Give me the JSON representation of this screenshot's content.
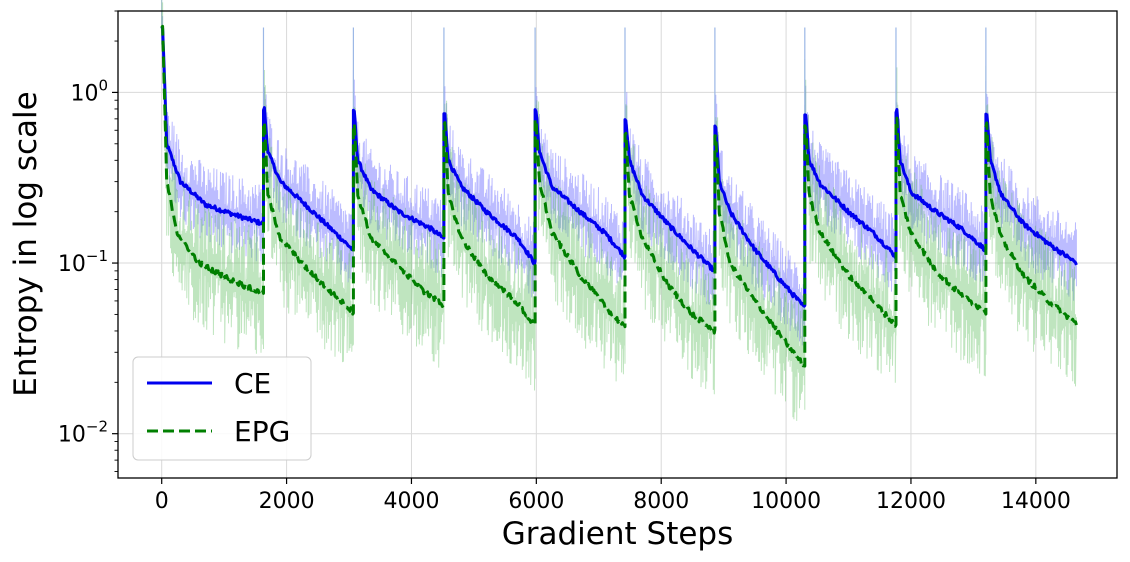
{
  "chart_data": {
    "type": "line",
    "xlabel": "Gradient Steps",
    "ylabel": "Entropy in log scale",
    "y_scale": "log",
    "xlim": [
      -700,
      15300
    ],
    "ylim": [
      0.0055,
      3.0
    ],
    "grid": true,
    "legend_position": "lower-left",
    "x_ticks": [
      0,
      2000,
      4000,
      6000,
      8000,
      10000,
      12000,
      14000
    ],
    "x_tick_labels": [
      "0",
      "2000",
      "4000",
      "6000",
      "8000",
      "10000",
      "12000",
      "14000"
    ],
    "y_ticks": [
      {
        "value": 1,
        "base": "10",
        "exp": "0"
      },
      {
        "value": 0.1,
        "base": "10",
        "exp": "−1"
      },
      {
        "value": 0.01,
        "base": "10",
        "exp": "−2"
      }
    ],
    "resets": [
      0,
      1630,
      3070,
      4520,
      5980,
      7420,
      8860,
      10300,
      11760,
      13200,
      14650
    ],
    "series": [
      {
        "name": "CE",
        "color": "#0000ee",
        "band_color": "#6b6bff",
        "line_style": "solid",
        "peaks": [
          2.4,
          0.8,
          0.78,
          0.74,
          0.78,
          0.7,
          0.63,
          0.76,
          0.78,
          0.75
        ],
        "anchors": [
          [
            [
              80,
              0.5
            ],
            [
              300,
              0.3
            ],
            [
              700,
              0.22
            ],
            [
              1200,
              0.19
            ],
            [
              1620,
              0.17
            ]
          ],
          [
            [
              1700,
              0.45
            ],
            [
              1900,
              0.3
            ],
            [
              2300,
              0.22
            ],
            [
              2700,
              0.16
            ],
            [
              3060,
              0.12
            ]
          ],
          [
            [
              3140,
              0.4
            ],
            [
              3350,
              0.27
            ],
            [
              3800,
              0.2
            ],
            [
              4300,
              0.16
            ],
            [
              4510,
              0.14
            ]
          ],
          [
            [
              4590,
              0.4
            ],
            [
              4800,
              0.28
            ],
            [
              5200,
              0.2
            ],
            [
              5700,
              0.14
            ],
            [
              5970,
              0.1
            ]
          ],
          [
            [
              6050,
              0.45
            ],
            [
              6250,
              0.28
            ],
            [
              6700,
              0.2
            ],
            [
              7100,
              0.15
            ],
            [
              7410,
              0.11
            ]
          ],
          [
            [
              7490,
              0.4
            ],
            [
              7700,
              0.25
            ],
            [
              8100,
              0.17
            ],
            [
              8500,
              0.12
            ],
            [
              8850,
              0.09
            ]
          ],
          [
            [
              8930,
              0.3
            ],
            [
              9100,
              0.2
            ],
            [
              9500,
              0.12
            ],
            [
              9900,
              0.08
            ],
            [
              10290,
              0.055
            ]
          ],
          [
            [
              10370,
              0.4
            ],
            [
              10550,
              0.29
            ],
            [
              11000,
              0.2
            ],
            [
              11400,
              0.15
            ],
            [
              11750,
              0.11
            ]
          ],
          [
            [
              11830,
              0.4
            ],
            [
              12000,
              0.26
            ],
            [
              12400,
              0.2
            ],
            [
              12800,
              0.16
            ],
            [
              13190,
              0.12
            ]
          ],
          [
            [
              13270,
              0.4
            ],
            [
              13450,
              0.25
            ],
            [
              13800,
              0.17
            ],
            [
              14200,
              0.13
            ],
            [
              14650,
              0.1
            ]
          ]
        ]
      },
      {
        "name": "EPG",
        "color": "#007f00",
        "band_color": "#5fbf5f",
        "line_style": "dashed",
        "peaks": [
          2.4,
          0.66,
          0.66,
          0.66,
          0.68,
          0.58,
          0.57,
          0.64,
          0.69,
          0.64
        ],
        "anchors": [
          [
            [
              80,
              0.3
            ],
            [
              250,
              0.15
            ],
            [
              600,
              0.1
            ],
            [
              1100,
              0.08
            ],
            [
              1620,
              0.066
            ]
          ],
          [
            [
              1700,
              0.25
            ],
            [
              1900,
              0.14
            ],
            [
              2300,
              0.095
            ],
            [
              2700,
              0.068
            ],
            [
              3060,
              0.052
            ]
          ],
          [
            [
              3140,
              0.25
            ],
            [
              3350,
              0.14
            ],
            [
              3800,
              0.095
            ],
            [
              4200,
              0.068
            ],
            [
              4510,
              0.057
            ]
          ],
          [
            [
              4590,
              0.25
            ],
            [
              4800,
              0.14
            ],
            [
              5200,
              0.085
            ],
            [
              5700,
              0.058
            ],
            [
              5970,
              0.043
            ]
          ],
          [
            [
              6050,
              0.3
            ],
            [
              6250,
              0.15
            ],
            [
              6700,
              0.085
            ],
            [
              7100,
              0.056
            ],
            [
              7410,
              0.042
            ]
          ],
          [
            [
              7490,
              0.25
            ],
            [
              7700,
              0.14
            ],
            [
              8100,
              0.075
            ],
            [
              8500,
              0.05
            ],
            [
              8850,
              0.04
            ]
          ],
          [
            [
              8930,
              0.2
            ],
            [
              9100,
              0.1
            ],
            [
              9500,
              0.06
            ],
            [
              9900,
              0.038
            ],
            [
              10290,
              0.025
            ]
          ],
          [
            [
              10370,
              0.25
            ],
            [
              10550,
              0.15
            ],
            [
              11000,
              0.085
            ],
            [
              11400,
              0.06
            ],
            [
              11750,
              0.043
            ]
          ],
          [
            [
              11830,
              0.25
            ],
            [
              12000,
              0.15
            ],
            [
              12400,
              0.09
            ],
            [
              12800,
              0.065
            ],
            [
              13190,
              0.052
            ]
          ],
          [
            [
              13270,
              0.25
            ],
            [
              13450,
              0.14
            ],
            [
              13800,
              0.085
            ],
            [
              14200,
              0.06
            ],
            [
              14650,
              0.044
            ]
          ]
        ]
      }
    ]
  }
}
